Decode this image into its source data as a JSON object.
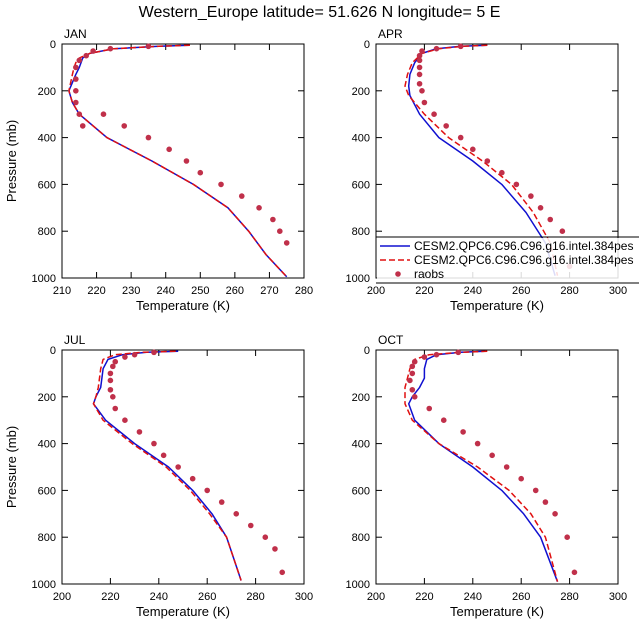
{
  "title": "Western_Europe  latitude= 51.626 N longitude= 5 E",
  "colors": {
    "model_a": "#1010d0",
    "model_b": "#e01010",
    "raobs": "#c0304a"
  },
  "legend": {
    "entries": [
      {
        "label": "CESM2.QPC6.C96.C96.g16.intel.384pes",
        "style": "solid",
        "color": "#1010d0"
      },
      {
        "label": "CESM2.QPC6.C96.C96.g16.intel.384pes",
        "style": "dashed",
        "color": "#e01010"
      },
      {
        "label": "raobs",
        "style": "dots",
        "color": "#c0304a"
      }
    ]
  },
  "chart_data": [
    {
      "type": "line",
      "panel": "JAN",
      "xlabel": "Temperature (K)",
      "ylabel": "Pressure (mb)",
      "xlim": [
        210,
        280
      ],
      "ylim": [
        1000,
        0
      ],
      "y_reversed": true,
      "xticks": [
        210,
        220,
        230,
        240,
        250,
        260,
        270,
        280
      ],
      "yticks": [
        0,
        200,
        400,
        600,
        800,
        1000
      ],
      "series": [
        {
          "style": "solid",
          "color": "#1010d0",
          "x": [
            247,
            238,
            225,
            218,
            216,
            215.5,
            215,
            214,
            212,
            213,
            215,
            223,
            236,
            248,
            258,
            264,
            269,
            275
          ],
          "y": [
            5,
            10,
            20,
            40,
            60,
            80,
            100,
            130,
            200,
            250,
            300,
            400,
            500,
            600,
            700,
            800,
            900,
            995
          ]
        },
        {
          "style": "dashed",
          "color": "#e01010",
          "x": [
            247,
            238,
            225,
            218,
            215,
            214,
            213.5,
            213,
            212,
            213,
            215,
            223,
            236,
            248,
            258,
            264,
            269,
            275
          ],
          "y": [
            5,
            10,
            20,
            40,
            60,
            80,
            100,
            130,
            200,
            250,
            300,
            400,
            500,
            600,
            700,
            800,
            900,
            995
          ]
        },
        {
          "style": "dots",
          "color": "#c0304a",
          "x": [
            235,
            224,
            219,
            217,
            215,
            214,
            214,
            214,
            214,
            215,
            216,
            222,
            228,
            235,
            241,
            246,
            250,
            256,
            262,
            267,
            271,
            273,
            275
          ],
          "y": [
            10,
            20,
            30,
            50,
            70,
            100,
            150,
            200,
            250,
            300,
            350,
            300,
            350,
            400,
            450,
            500,
            550,
            600,
            650,
            700,
            750,
            800,
            850
          ]
        }
      ]
    },
    {
      "type": "line",
      "panel": "APR",
      "xlabel": "Temperature (K)",
      "ylabel": "",
      "xlim": [
        200,
        300
      ],
      "ylim": [
        1000,
        0
      ],
      "y_reversed": true,
      "xticks": [
        200,
        220,
        240,
        260,
        280,
        300
      ],
      "yticks": [
        0,
        200,
        400,
        600,
        800,
        1000
      ],
      "series": [
        {
          "style": "solid",
          "color": "#1010d0",
          "x": [
            246,
            235,
            225,
            219,
            216,
            214,
            213.5,
            214,
            218,
            226,
            240,
            252,
            262,
            270,
            274
          ],
          "y": [
            5,
            10,
            20,
            40,
            80,
            130,
            180,
            220,
            300,
            400,
            500,
            600,
            720,
            850,
            990
          ]
        },
        {
          "style": "dashed",
          "color": "#e01010",
          "x": [
            246,
            236,
            226,
            219,
            215,
            213,
            212,
            213.5,
            220,
            230,
            244,
            256,
            265,
            272,
            275
          ],
          "y": [
            5,
            10,
            20,
            40,
            80,
            130,
            180,
            220,
            300,
            400,
            500,
            600,
            720,
            850,
            990
          ]
        },
        {
          "style": "dots",
          "color": "#c0304a",
          "x": [
            235,
            225,
            219,
            218,
            218,
            218,
            218,
            218,
            219,
            220,
            224,
            229,
            235,
            240,
            246,
            252,
            258,
            264,
            268,
            272,
            277,
            280
          ],
          "y": [
            10,
            20,
            30,
            50,
            70,
            100,
            130,
            170,
            200,
            250,
            300,
            350,
            400,
            450,
            500,
            550,
            600,
            650,
            700,
            750,
            800,
            950
          ]
        }
      ]
    },
    {
      "type": "line",
      "panel": "JUL",
      "xlabel": "Temperature (K)",
      "ylabel": "Pressure (mb)",
      "xlim": [
        200,
        300
      ],
      "ylim": [
        1000,
        0
      ],
      "y_reversed": true,
      "xticks": [
        200,
        220,
        240,
        260,
        280,
        300
      ],
      "yticks": [
        0,
        200,
        400,
        600,
        800,
        1000
      ],
      "series": [
        {
          "style": "solid",
          "color": "#1010d0",
          "x": [
            248,
            235,
            225,
            219,
            217,
            216.5,
            216,
            214,
            213,
            218,
            230,
            244,
            254,
            262,
            268,
            274
          ],
          "y": [
            5,
            10,
            20,
            40,
            80,
            120,
            160,
            200,
            230,
            300,
            400,
            500,
            600,
            700,
            800,
            985
          ]
        },
        {
          "style": "dashed",
          "color": "#e01010",
          "x": [
            247,
            233,
            222,
            217,
            216,
            215.5,
            215,
            214,
            213,
            217,
            229,
            243,
            253,
            261,
            268,
            274
          ],
          "y": [
            5,
            10,
            20,
            40,
            80,
            120,
            160,
            200,
            230,
            300,
            400,
            500,
            600,
            700,
            800,
            985
          ]
        },
        {
          "style": "dots",
          "color": "#c0304a",
          "x": [
            238,
            230,
            226,
            222,
            221,
            220,
            220,
            220,
            221,
            222,
            226,
            232,
            238,
            242,
            248,
            254,
            260,
            266,
            272,
            278,
            284,
            288,
            291
          ],
          "y": [
            10,
            20,
            30,
            50,
            70,
            100,
            130,
            170,
            200,
            250,
            300,
            350,
            400,
            450,
            500,
            550,
            600,
            650,
            700,
            750,
            800,
            850,
            950
          ]
        }
      ]
    },
    {
      "type": "line",
      "panel": "OCT",
      "xlabel": "Temperature (K)",
      "ylabel": "",
      "xlim": [
        200,
        300
      ],
      "ylim": [
        1000,
        0
      ],
      "y_reversed": true,
      "xticks": [
        200,
        220,
        240,
        260,
        280,
        300
      ],
      "yticks": [
        0,
        200,
        400,
        600,
        800,
        1000
      ],
      "series": [
        {
          "style": "solid",
          "color": "#1010d0",
          "x": [
            245,
            235,
            225,
            221,
            220,
            220,
            218,
            215,
            213.5,
            216,
            226,
            240,
            252,
            261,
            268,
            275
          ],
          "y": [
            5,
            10,
            20,
            40,
            80,
            120,
            160,
            200,
            230,
            300,
            400,
            500,
            600,
            700,
            800,
            990
          ]
        },
        {
          "style": "dashed",
          "color": "#e01010",
          "x": [
            246,
            235,
            222,
            216,
            214,
            213,
            212,
            212,
            212,
            215,
            226,
            242,
            255,
            264,
            270,
            275
          ],
          "y": [
            5,
            10,
            20,
            40,
            80,
            120,
            160,
            200,
            230,
            300,
            400,
            500,
            600,
            700,
            800,
            990
          ]
        },
        {
          "style": "dots",
          "color": "#c0304a",
          "x": [
            234,
            225,
            220,
            216,
            215,
            215,
            214,
            215,
            216,
            222,
            228,
            236,
            242,
            248,
            254,
            260,
            266,
            270,
            274,
            279,
            282
          ],
          "y": [
            10,
            20,
            30,
            50,
            70,
            100,
            130,
            170,
            200,
            250,
            300,
            350,
            400,
            450,
            500,
            550,
            600,
            650,
            700,
            800,
            950
          ]
        }
      ]
    }
  ]
}
